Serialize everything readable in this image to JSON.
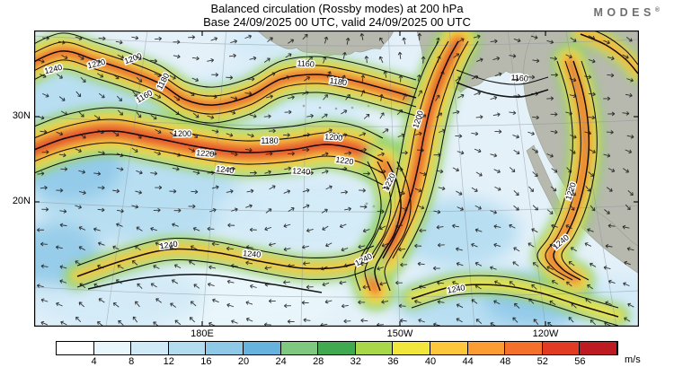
{
  "header": {
    "title": "Balanced circulation (Rossby modes) at 200 hPa",
    "subtitle": "Base 24/09/2025 00 UTC, valid 24/09/2025 00 UTC",
    "logo_text": "MODES",
    "logo_mark": "®"
  },
  "map": {
    "lat_ticks": [
      "30N",
      "20N"
    ],
    "lon_ticks": [
      "180E",
      "150W",
      "120W"
    ],
    "contour_levels": [
      "1160",
      "1180",
      "1200",
      "1220",
      "1240"
    ]
  },
  "colorbar": {
    "ticks": [
      "4",
      "8",
      "12",
      "16",
      "20",
      "24",
      "28",
      "32",
      "36",
      "40",
      "44",
      "48",
      "52",
      "56"
    ],
    "unit": "m/s",
    "colors": [
      "#ffffff",
      "#e9f6fb",
      "#d1eaf7",
      "#b3dcf1",
      "#8fc9e8",
      "#66b3dd",
      "#7ec87f",
      "#41aa51",
      "#a8d74a",
      "#f0e63c",
      "#fdc63c",
      "#fb9d33",
      "#f4702b",
      "#e13b24",
      "#bd1a21"
    ]
  },
  "chart_data": {
    "type": "heatmap",
    "title": "Balanced circulation (Rossby modes) at 200 hPa",
    "subtitle": "Base 24/09/2025 00 UTC, valid 24/09/2025 00 UTC",
    "field": "wind speed (shaded), height contours (black lines), wind direction arrows",
    "unit": "m/s",
    "colorbar_ticks": [
      4,
      8,
      12,
      16,
      20,
      24,
      28,
      32,
      36,
      40,
      44,
      48,
      52,
      56
    ],
    "colorbar_range_implied": [
      0,
      60
    ],
    "contour_levels_labeled": [
      1160,
      1180,
      1200,
      1220,
      1240
    ],
    "x_tick_labels": [
      "180E",
      "150W",
      "120W"
    ],
    "y_tick_labels": [
      "30N",
      "20N"
    ],
    "legend_position": "bottom"
  }
}
